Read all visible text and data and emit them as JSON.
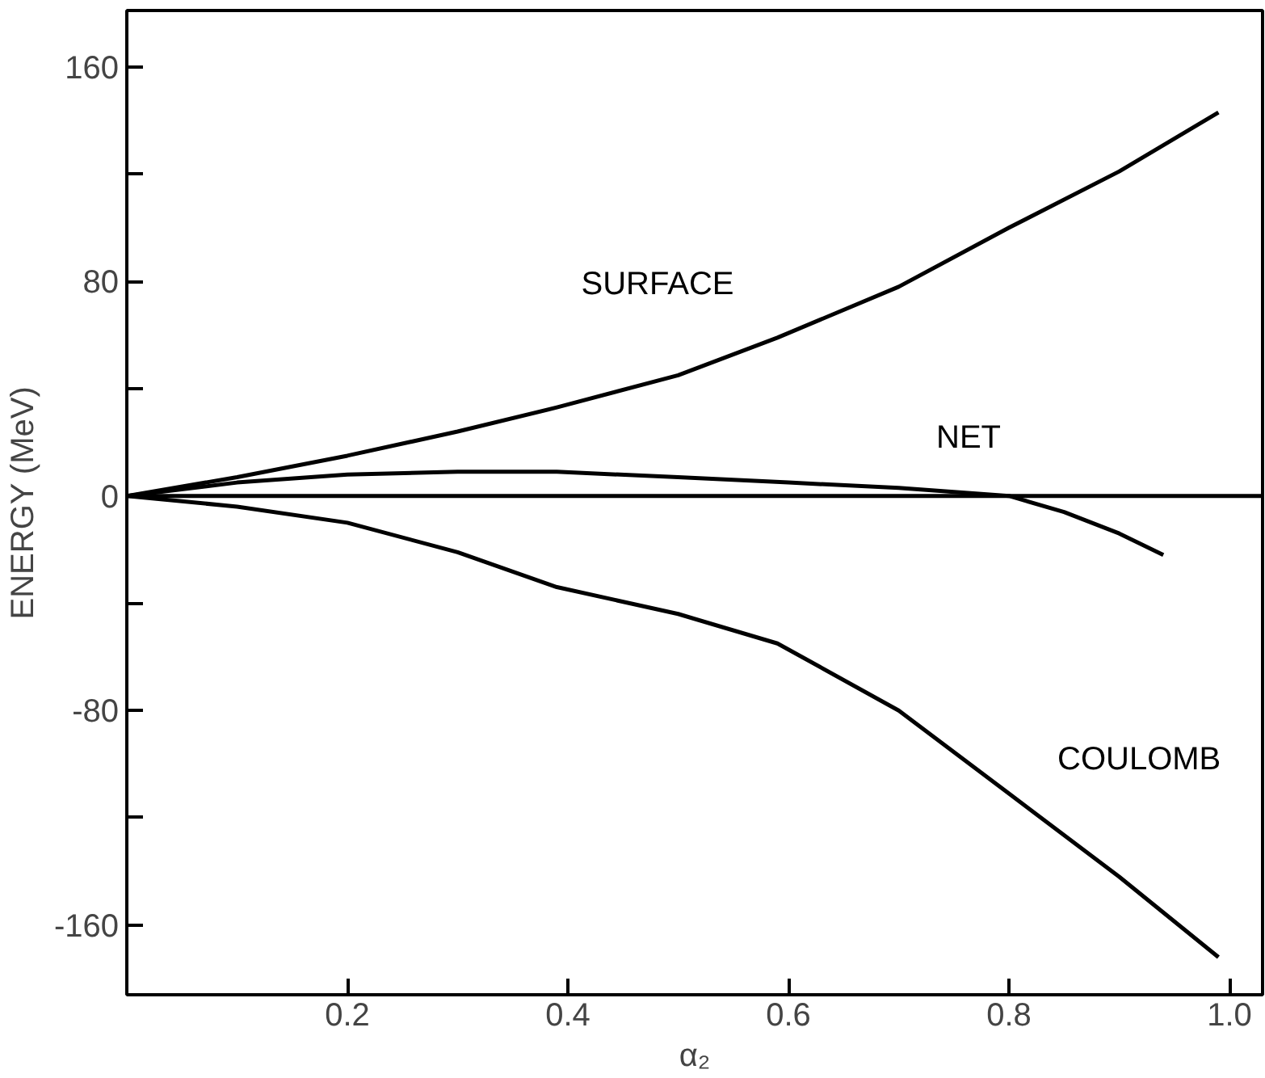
{
  "chart_data": {
    "type": "line",
    "xlabel": "α₂",
    "ylabel": "ENERGY (MeV)",
    "xlim": [
      0,
      1.03
    ],
    "ylim": [
      -186,
      181
    ],
    "xticks": [
      0.2,
      0.4,
      0.6,
      0.8,
      {
        "value": 1.0,
        "label": "1.0"
      }
    ],
    "yticks": [
      -160,
      {
        "value": -120,
        "label": null
      },
      -80,
      {
        "value": -40,
        "label": null
      },
      0,
      {
        "value": 40,
        "label": null
      },
      80,
      {
        "value": 120,
        "label": null
      },
      160
    ],
    "grid": false,
    "series": [
      {
        "name": "SURFACE",
        "color": "#000000",
        "x": [
          0,
          0.1,
          0.2,
          0.3,
          0.39,
          0.5,
          0.59,
          0.7,
          0.8,
          0.9,
          0.99
        ],
        "values": [
          0,
          7,
          15,
          24,
          33,
          45,
          59,
          78,
          100,
          121,
          143
        ]
      },
      {
        "name": "NET",
        "color": "#000000",
        "x": [
          0,
          0.1,
          0.2,
          0.3,
          0.39,
          0.5,
          0.6,
          0.7,
          0.8,
          0.85,
          0.9,
          0.94
        ],
        "values": [
          0,
          5,
          8,
          9,
          9,
          7,
          5,
          3,
          0,
          -6,
          -14,
          -22
        ]
      },
      {
        "name": "COULOMB",
        "color": "#000000",
        "x": [
          0,
          0.1,
          0.2,
          0.3,
          0.39,
          0.5,
          0.59,
          0.7,
          0.8,
          0.9,
          0.99
        ],
        "values": [
          0,
          -4,
          -10,
          -21,
          -34,
          -44,
          -55,
          -80,
          -111,
          -142,
          -172
        ]
      }
    ],
    "ref_lines": [
      {
        "axis": "y",
        "value": 0,
        "color": "#000000"
      }
    ]
  }
}
